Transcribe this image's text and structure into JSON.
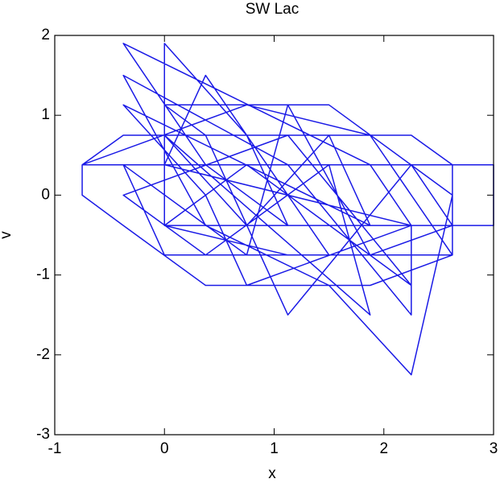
{
  "chart_data": {
    "type": "line",
    "title": "SW Lac",
    "x_label": "x",
    "y_label": "v",
    "color": "#1a1ae6",
    "x": [
      -0.75,
      -0.375,
      2.25,
      2.625,
      2.625,
      1.875,
      0.375,
      -0.375,
      -0.75,
      -0.75,
      3,
      3,
      0,
      0,
      0.75,
      1.125,
      0.375,
      -0.375,
      1.875,
      2.25,
      0,
      0.375,
      1.5,
      0,
      -0.375,
      0.75,
      1.125,
      1.875,
      2.625,
      2.25,
      1.125,
      0.375,
      0,
      1.5,
      2.625,
      2.25,
      1.5,
      0.375,
      -0.375,
      1.125,
      2.25,
      2.25,
      0.75,
      0.375,
      -0.375,
      1.875,
      1.5,
      0.75,
      0,
      1.875,
      1.5,
      0.375,
      -0.375,
      1.125,
      2.25,
      0.75,
      0,
      1.125,
      2.625,
      1.875,
      0.75,
      -0.75
    ],
    "values": [
      0.38,
      0.75,
      0.75,
      0.38,
      -0.75,
      -1.13,
      -1.13,
      -0.38,
      0,
      0.38,
      0.38,
      -0.38,
      -0.38,
      1.9,
      0.75,
      -0.38,
      0.38,
      1.9,
      0.38,
      -0.38,
      0.38,
      1.5,
      -0.75,
      -0.75,
      0.38,
      -0.75,
      1.13,
      -0.75,
      -0.38,
      0.38,
      -1.5,
      0.75,
      1.13,
      1.13,
      0,
      -2.25,
      -1.13,
      -0.38,
      1.5,
      0.38,
      -1.5,
      -0.38,
      -1.13,
      0,
      1.13,
      -0.38,
      0.75,
      -0.38,
      0.75,
      -1.5,
      0.38,
      -0.75,
      0,
      0.75,
      -1.13,
      0.38,
      -0.38,
      -0.75,
      -0.75,
      0.75,
      1.13,
      0.38
    ],
    "xlim": [
      -1,
      3
    ],
    "ylim": [
      -3,
      2
    ],
    "xticks": [
      -1,
      0,
      1,
      2,
      3
    ],
    "yticks": [
      -3,
      -2,
      -1,
      0,
      1,
      2
    ]
  }
}
